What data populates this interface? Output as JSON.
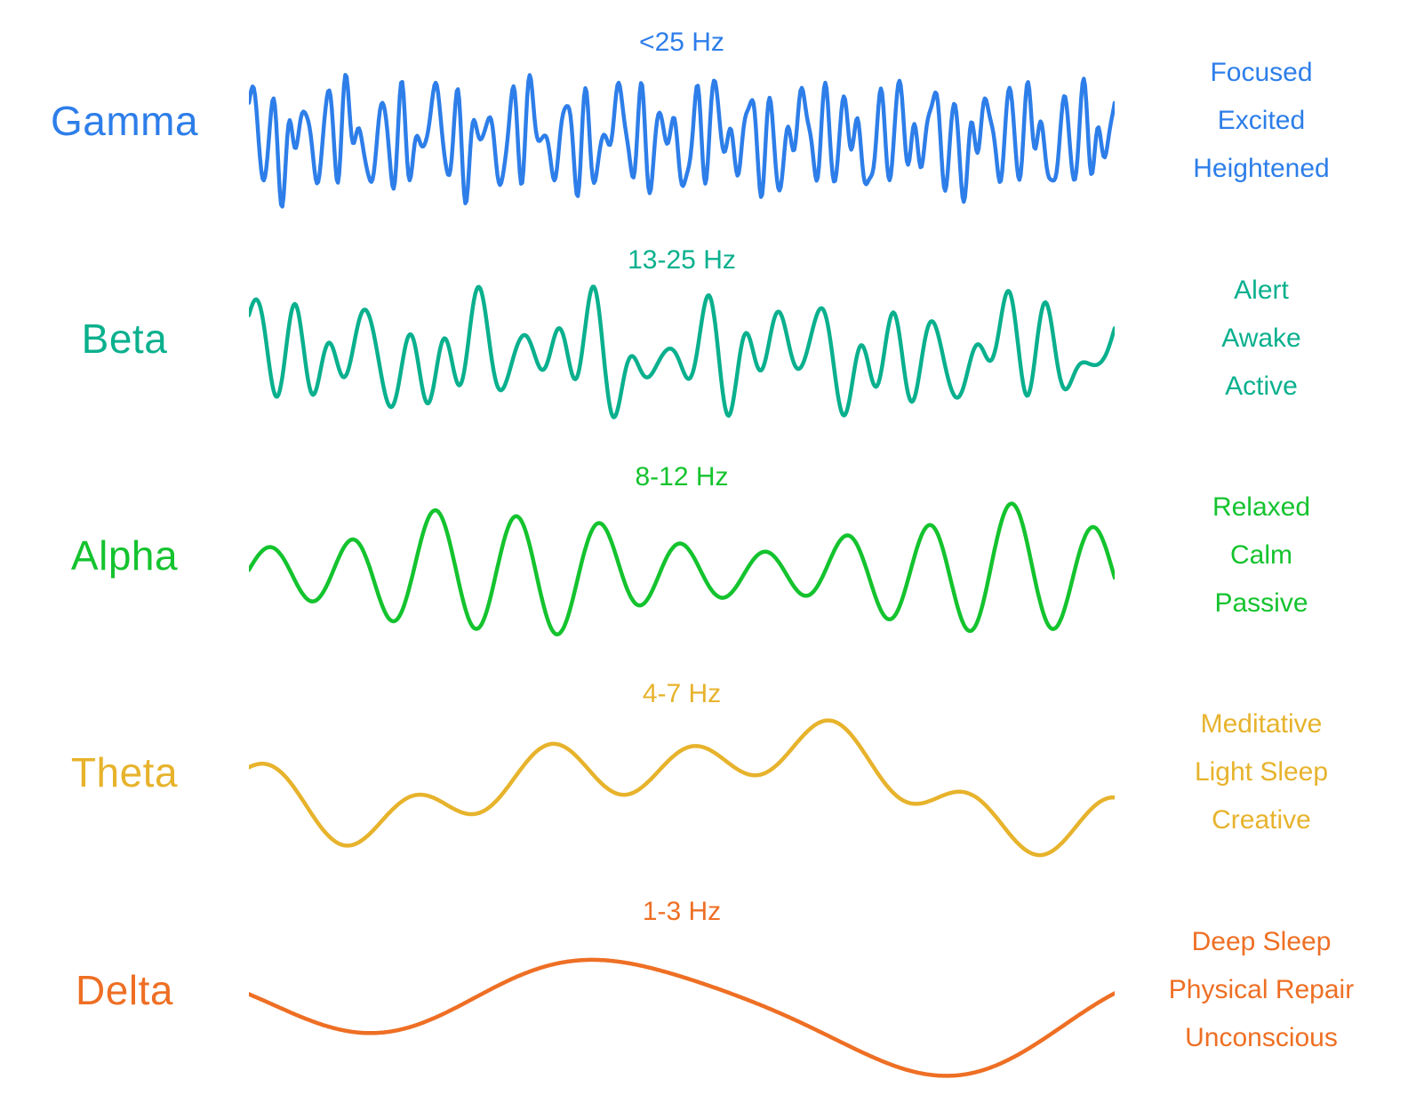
{
  "rows": [
    {
      "id": "gamma",
      "label": "Gamma",
      "freq": "<25 Hz",
      "states": [
        "Focused",
        "Excited",
        "Heightened"
      ],
      "color": "#2d7ee9",
      "wave": {
        "components": [
          {
            "f": 47,
            "a": 1.0,
            "p": 0.0
          },
          {
            "f": 33,
            "a": 0.75,
            "p": 1.7
          },
          {
            "f": 19,
            "a": 0.5,
            "p": 0.9
          },
          {
            "f": 61,
            "a": 0.45,
            "p": 3.1
          },
          {
            "f": 9,
            "a": 0.3,
            "p": 2.2
          },
          {
            "f": 76,
            "a": 0.22,
            "p": 5.1
          }
        ]
      }
    },
    {
      "id": "beta",
      "label": "Beta",
      "freq": "13-25 Hz",
      "states": [
        "Alert",
        "Awake",
        "Active"
      ],
      "color": "#0ab08e",
      "wave": {
        "components": [
          {
            "f": 23,
            "a": 1.0,
            "p": 0.4
          },
          {
            "f": 15,
            "a": 0.65,
            "p": 2.0
          },
          {
            "f": 8,
            "a": 0.5,
            "p": 1.2
          },
          {
            "f": 29,
            "a": 0.35,
            "p": 4.4
          },
          {
            "f": 3.5,
            "a": 0.3,
            "p": 0.8
          }
        ]
      }
    },
    {
      "id": "alpha",
      "label": "Alpha",
      "freq": "8-12 Hz",
      "states": [
        "Relaxed",
        "Calm",
        "Passive"
      ],
      "color": "#14c32e",
      "wave": {
        "components": [
          {
            "f": 10.5,
            "a": 1.0,
            "p": 0.0
          },
          {
            "f": 4.6,
            "a": 0.12,
            "p": 1.2
          }
        ],
        "am": {
          "f": 1.7,
          "depth": 0.65,
          "p": 4.8
        }
      }
    },
    {
      "id": "theta",
      "label": "Theta",
      "freq": "4-7 Hz",
      "states": [
        "Meditative",
        "Light Sleep",
        "Creative"
      ],
      "color": "#e7b32c",
      "wave": {
        "components": [
          {
            "f": 6.2,
            "a": 0.42,
            "p": 0.5
          },
          {
            "f": 1.15,
            "a": 0.6,
            "p": 3.6
          },
          {
            "f": 2.8,
            "a": 0.3,
            "p": 2.2
          },
          {
            "f": 0.5,
            "a": 0.25,
            "p": 1.0
          }
        ]
      }
    },
    {
      "id": "delta",
      "label": "Delta",
      "freq": "1-3 Hz",
      "states": [
        "Deep Sleep",
        "Physical Repair",
        "Unconscious"
      ],
      "color": "#ee6f24",
      "wave": {
        "components": [
          {
            "f": 1.55,
            "a": 1.0,
            "p": 3.4
          },
          {
            "f": 0.75,
            "a": 0.55,
            "p": 0.8
          },
          {
            "f": 2.9,
            "a": 0.18,
            "p": 1.9
          }
        ]
      }
    }
  ]
}
